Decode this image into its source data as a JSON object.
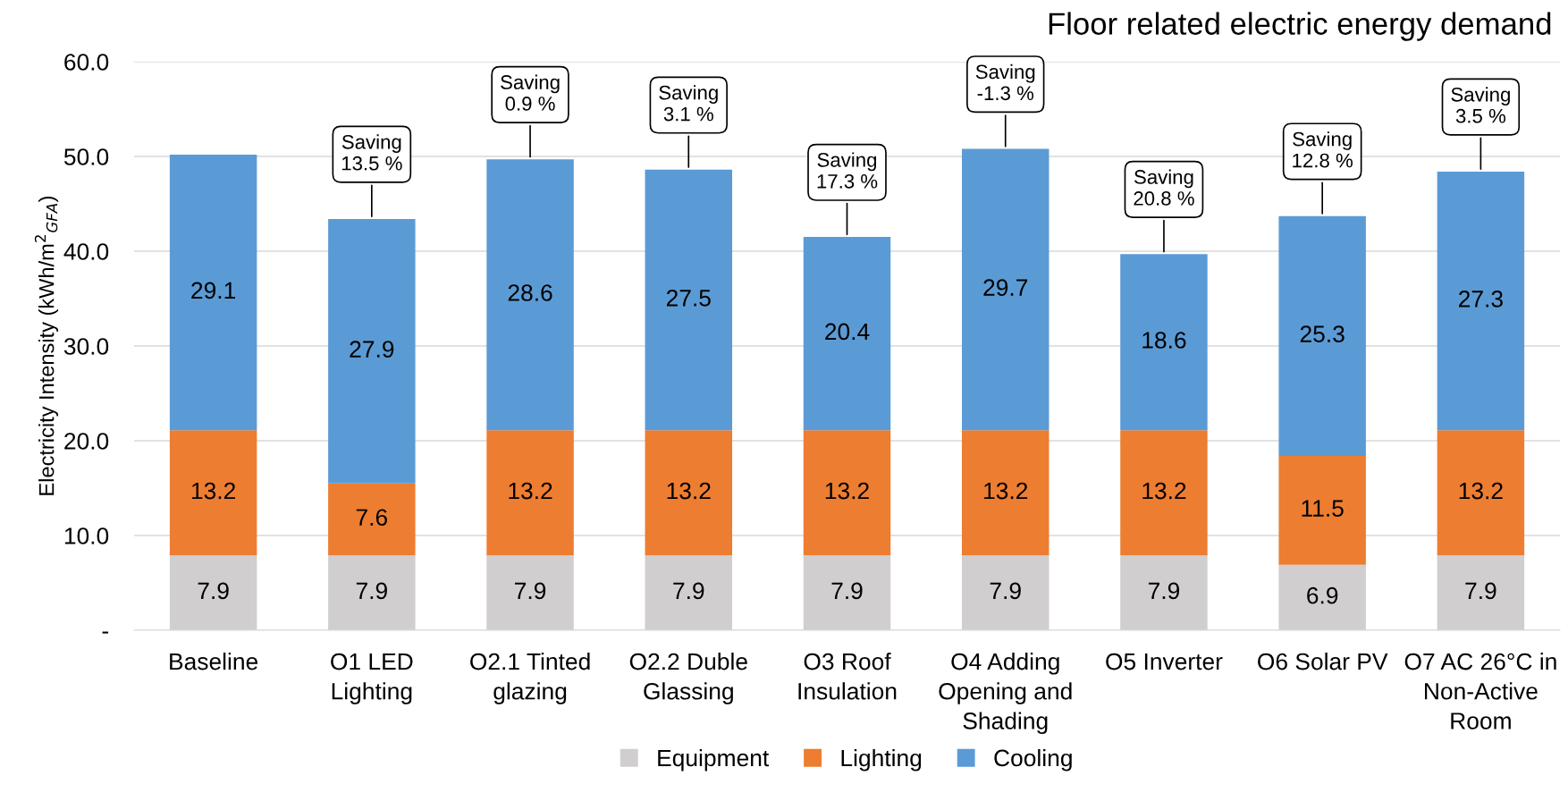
{
  "chart_data": {
    "type": "bar",
    "stacked": true,
    "title": "Floor related electric energy demand",
    "ylabel": "Electricity Intensity (kWh/m$^{2}$$_{GFA}$)",
    "categories": [
      "Baseline",
      "O1 LED\nLighting",
      "O2.1 Tinted\nglazing",
      "O2.2 Duble\nGlassing",
      "O3 Roof\nInsulation",
      "O4 Adding\nOpening and\nShading",
      "O5 Inverter",
      "O6 Solar PV",
      "O7 AC 26°C in\nNon-Active\nRoom"
    ],
    "series": [
      {
        "name": "Equipment",
        "color": "#d0cece",
        "values": [
          7.9,
          7.9,
          7.9,
          7.9,
          7.9,
          7.9,
          7.9,
          6.9,
          7.9
        ]
      },
      {
        "name": "Lighting",
        "color": "#ed7d31",
        "values": [
          13.2,
          7.6,
          13.2,
          13.2,
          13.2,
          13.2,
          13.2,
          11.5,
          13.2
        ]
      },
      {
        "name": "Cooling",
        "color": "#5b9bd5",
        "values": [
          29.1,
          27.9,
          28.6,
          27.5,
          20.4,
          29.7,
          18.6,
          25.3,
          27.3
        ]
      }
    ],
    "data_labels": true,
    "ylim": [
      0,
      60
    ],
    "yticks": [
      {
        "value": 0,
        "label": "-"
      },
      {
        "value": 10,
        "label": "10.0"
      },
      {
        "value": 20,
        "label": "20.0"
      },
      {
        "value": 30,
        "label": "30.0"
      },
      {
        "value": 40,
        "label": "40.0"
      },
      {
        "value": 50,
        "label": "50.0"
      },
      {
        "value": 60,
        "label": "60.0"
      }
    ],
    "grid": "y",
    "legend": "bottom",
    "annotations": [
      {
        "text": "Saving\n13.5 %",
        "x": "O1 LED\nLighting",
        "y": 43.4
      },
      {
        "text": "Saving\n0.9 %",
        "x": "O2.1 Tinted\nglazing",
        "y": 49.7
      },
      {
        "text": "Saving\n3.1 %",
        "x": "O2.2 Duble\nGlassing",
        "y": 48.6
      },
      {
        "text": "Saving\n17.3 %",
        "x": "O3 Roof\nInsulation",
        "y": 41.5
      },
      {
        "text": "Saving\n-1.3 %",
        "x": "O4 Adding\nOpening and\nShading",
        "y": 50.8
      },
      {
        "text": "Saving\n20.8 %",
        "x": "O5 Inverter",
        "y": 39.7
      },
      {
        "text": "Saving\n12.8 %",
        "x": "O6 Solar PV",
        "y": 43.7
      },
      {
        "text": "Saving\n3.5 %",
        "x": "O7 AC 26°C in\nNon-Active\nRoom",
        "y": 48.4
      }
    ]
  }
}
